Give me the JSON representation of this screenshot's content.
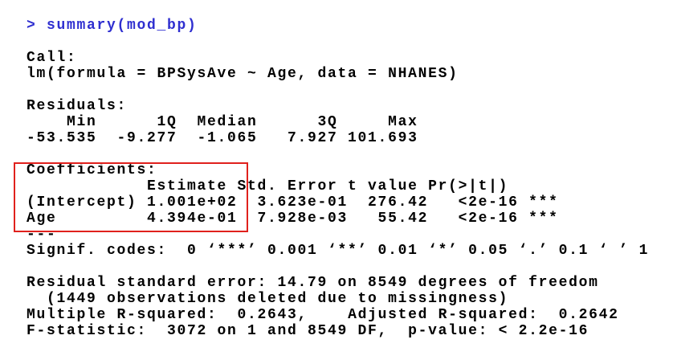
{
  "blocks": [
    {
      "lines": [
        "> summary(mod_bp)"
      ]
    },
    {
      "lines": [
        "Call:",
        "lm(formula = BPSysAve ~ Age, data = NHANES)"
      ]
    },
    {
      "lines": [
        "Residuals:",
        "    Min      1Q  Median      3Q     Max ",
        "-53.535  -9.277  -1.065   7.927 101.693 "
      ]
    },
    {
      "lines": [
        "Coefficients:",
        "            Estimate Std. Error t value Pr(>|t|)    ",
        "(Intercept) 1.001e+02  3.623e-01  276.42   <2e-16 ***",
        "Age         4.394e-01  7.928e-03   55.42   <2e-16 ***",
        "---",
        "Signif. codes:  0 ‘***’ 0.001 ‘**’ 0.01 ‘*’ 0.05 ‘.’ 0.1 ‘ ’ 1"
      ]
    },
    {
      "lines": [
        "Residual standard error: 14.79 on 8549 degrees of freedom",
        "  (1449 observations deleted due to missingness)",
        "Multiple R-squared:  0.2643,\tAdjusted R-squared:  0.2642 ",
        "F-statistic:  3072 on 1 and 8549 DF,  p-value: < 2.2e-16"
      ]
    }
  ]
}
